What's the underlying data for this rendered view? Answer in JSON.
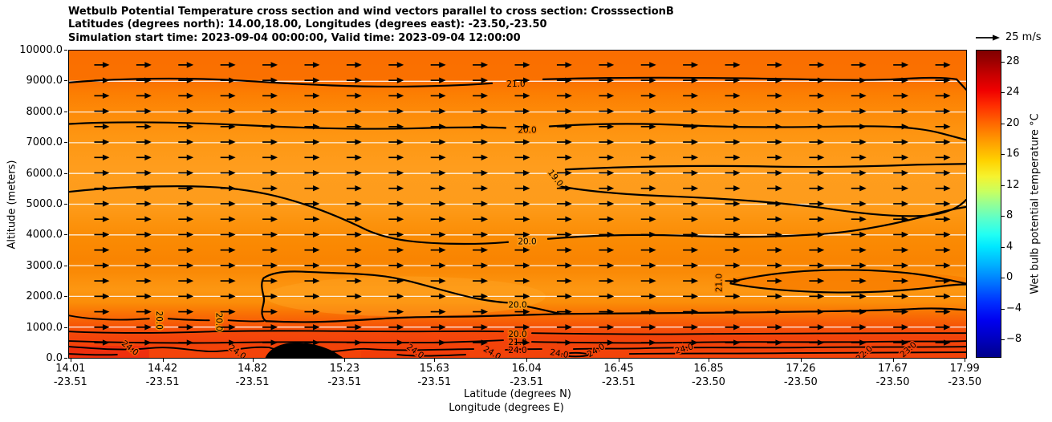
{
  "title": {
    "line1": "Wetbulb Potential Temperature cross section and wind vectors parallel to cross section: CrosssectionB",
    "line2": "Latitudes (degrees north): 14.00,18.00, Longitudes (degrees east): -23.50,-23.50",
    "line3": "Simulation start time: 2023-09-04 00:00:00, Valid time: 2023-09-04 12:00:00"
  },
  "axes": {
    "ylabel": "Altitude (meters)",
    "xlabel_lat": "Latitude (degrees N)",
    "xlabel_lon": "Longitude (degrees E)",
    "y_ticks": [
      "10000.0",
      "9000.0",
      "8000.0",
      "7000.0",
      "6000.0",
      "5000.0",
      "4000.0",
      "3000.0",
      "2000.0",
      "1000.0",
      "0.0"
    ],
    "x_ticks": [
      {
        "lat": "14.01",
        "lon": "-23.51"
      },
      {
        "lat": "14.42",
        "lon": "-23.51"
      },
      {
        "lat": "14.82",
        "lon": "-23.51"
      },
      {
        "lat": "15.23",
        "lon": "-23.51"
      },
      {
        "lat": "15.63",
        "lon": "-23.51"
      },
      {
        "lat": "16.04",
        "lon": "-23.51"
      },
      {
        "lat": "16.45",
        "lon": "-23.51"
      },
      {
        "lat": "16.85",
        "lon": "-23.50"
      },
      {
        "lat": "17.26",
        "lon": "-23.50"
      },
      {
        "lat": "17.67",
        "lon": "-23.50"
      },
      {
        "lat": "17.99",
        "lon": "-23.50"
      }
    ]
  },
  "quiver_key": {
    "label": "25 m/s"
  },
  "colorbar": {
    "label": "Wet bulb potential temperature °C",
    "ticks": [
      "28",
      "24",
      "20",
      "16",
      "12",
      "8",
      "4",
      "0",
      "−4",
      "−8"
    ]
  },
  "chart_data": {
    "type": "heatmap",
    "subtype": "vertical cross-section: filled contours of wet-bulb potential temperature + wind quiver",
    "title": "Wetbulb Potential Temperature cross section and wind vectors parallel to cross section: CrosssectionB",
    "subtitle": [
      "Latitudes (degrees north): 14.00,18.00, Longitudes (degrees east): -23.50,-23.50",
      "Simulation start time: 2023-09-04 00:00:00, Valid time: 2023-09-04 12:00:00"
    ],
    "xlabel": "Latitude (degrees N) / Longitude (degrees E)",
    "ylabel": "Altitude (meters)",
    "x_lat": [
      14.01,
      14.42,
      14.82,
      15.23,
      15.63,
      16.04,
      16.45,
      16.85,
      17.26,
      17.67,
      17.99
    ],
    "x_lon": [
      -23.51,
      -23.51,
      -23.51,
      -23.51,
      -23.51,
      -23.51,
      -23.51,
      -23.5,
      -23.5,
      -23.5,
      -23.5
    ],
    "xlim_lat": [
      14.0,
      18.0
    ],
    "ylim": [
      0,
      10000
    ],
    "y_tick_step": 1000,
    "grid": "horizontal white lines every 1000 m",
    "colormap": "jet",
    "colorbar_ticks": [
      28,
      24,
      20,
      16,
      12,
      8,
      4,
      0,
      -4,
      -8
    ],
    "colorbar_range_estimate": [
      -10,
      30
    ],
    "quiver_key_value_ms": 25,
    "wind_field": "near-uniform horizontal arrows pointing right (parallel to cross section) at all levels, speed ~20-25 m/s",
    "contour_label_values": [
      "19.0",
      "20.0",
      "21.0",
      "22.0",
      "23.0",
      "24.0"
    ],
    "contours": [
      {
        "level": 21.0,
        "description": "wavy line near 8800 m spanning full width"
      },
      {
        "level": 20.0,
        "description": "wavy line near 7400 m spanning full width, dipping to ~7000 m at right edge"
      },
      {
        "level": 19.0,
        "description": "open cool pocket near 6000 m from ~16.0N to the right edge"
      },
      {
        "level": 20.0,
        "description": "line starting ~5300 m at left, plateau ~5500 m, descending to ~3600-4000 m and continuing to right edge"
      },
      {
        "level": 21.0,
        "description": "closed warm lens near 2400 m from ~16.9N to right edge"
      },
      {
        "level": 20.0,
        "description": "closed warm pocket between ~900 and 2600 m from ~14.9N to ~16.1N"
      },
      {
        "level": "20.0-24.0",
        "description": "tightly packed contours (20,21,22,23,24) below ~1000 m with black filled core near 15.0-15.2N at the surface"
      }
    ],
    "field_summary": "Wet-bulb potential temperature ~19-21 C through the free troposphere (orange), increasing to 22-25 C (red) below ~1000 m"
  },
  "colors": {
    "field_top": "#fa6e00",
    "field_mid_light": "#ff9d1d",
    "field_low": "#fa8a03",
    "field_surface_red": "#f23f0b",
    "contour": "#000000",
    "gridline": "#ffffff",
    "arrow": "#000000",
    "figure_background": "#ffffff"
  }
}
